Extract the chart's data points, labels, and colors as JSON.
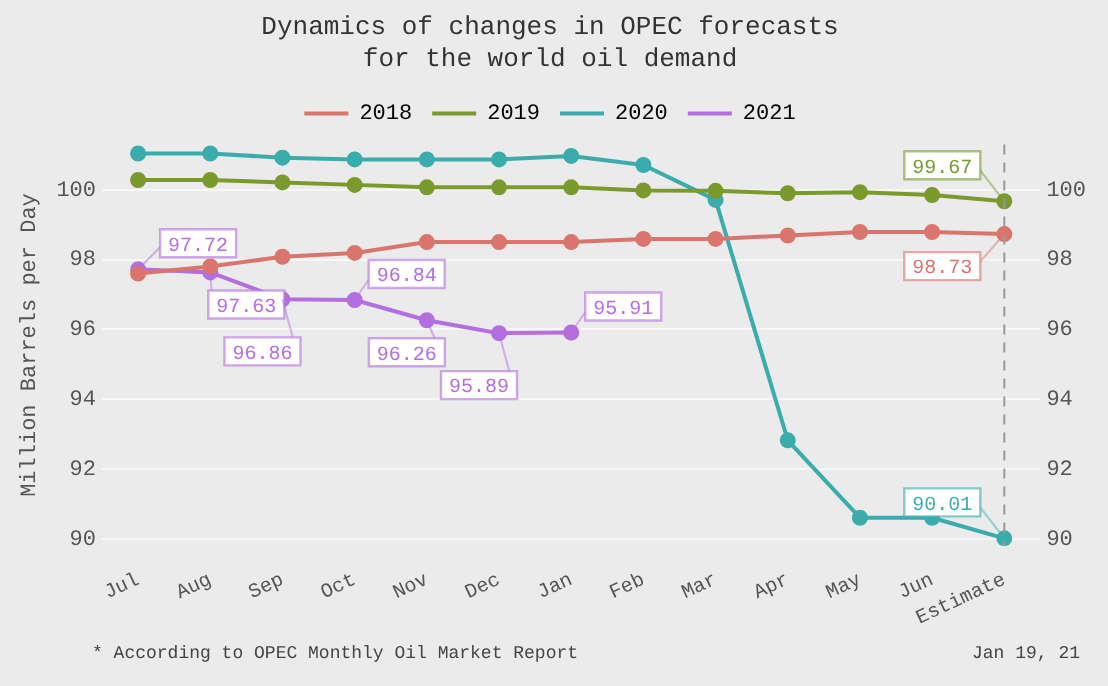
{
  "chart_data": {
    "type": "line",
    "title": "Dynamics of changes in OPEC forecasts\nfor the world oil demand",
    "ylabel": "Million Barrels per Day",
    "categories": [
      "Jul",
      "Aug",
      "Sep",
      "Oct",
      "Nov",
      "Dec",
      "Jan",
      "Feb",
      "Mar",
      "Apr",
      "May",
      "Jun",
      "Estimate"
    ],
    "series": [
      {
        "name": "2018",
        "color": "#d9756c",
        "values": [
          97.6,
          97.8,
          98.08,
          98.19,
          98.5,
          98.5,
          98.5,
          98.59,
          98.59,
          98.69,
          98.79,
          98.79,
          98.73
        ],
        "value_labels": [
          null,
          null,
          null,
          null,
          null,
          null,
          null,
          null,
          null,
          null,
          null,
          null,
          "98.73"
        ]
      },
      {
        "name": "2019",
        "color": "#7a9a2e",
        "values": [
          100.28,
          100.28,
          100.21,
          100.14,
          100.07,
          100.07,
          100.07,
          99.98,
          99.97,
          99.9,
          99.93,
          99.85,
          99.67
        ],
        "value_labels": [
          null,
          null,
          null,
          null,
          null,
          null,
          null,
          null,
          null,
          null,
          null,
          null,
          "99.67"
        ]
      },
      {
        "name": "2020",
        "color": "#3aacac",
        "values": [
          101.04,
          101.04,
          100.92,
          100.87,
          100.87,
          100.87,
          100.97,
          100.71,
          99.71,
          92.82,
          90.6,
          90.6,
          90.01
        ],
        "value_labels": [
          null,
          null,
          null,
          null,
          null,
          null,
          null,
          null,
          null,
          null,
          null,
          null,
          "90.01"
        ]
      },
      {
        "name": "2021",
        "color": "#b36ee0",
        "values": [
          97.72,
          97.63,
          96.86,
          96.84,
          96.26,
          95.89,
          95.91,
          null,
          null,
          null,
          null,
          null,
          null
        ],
        "value_labels": [
          "97.72",
          "97.63",
          "96.86",
          "96.84",
          "96.26",
          "95.89",
          "95.91",
          null,
          null,
          null,
          null,
          null,
          null
        ]
      }
    ],
    "ylim": [
      89.8,
      101.3
    ],
    "yticks": [
      90,
      92,
      94,
      96,
      98,
      100
    ],
    "y2lim": [
      89.8,
      101.3
    ],
    "y2ticks": [
      90,
      92,
      94,
      96,
      98,
      100
    ],
    "grid": "y",
    "legend": "top",
    "marker": "circle",
    "line_style": "solid",
    "ref_lines": [
      {
        "axis": "x",
        "value": "Estimate",
        "line_style": "dashed",
        "color": "#999999"
      }
    ],
    "annotations": [
      "* According to OPEC Monthly Oil Market Report",
      "Jan 19, 21"
    ]
  }
}
